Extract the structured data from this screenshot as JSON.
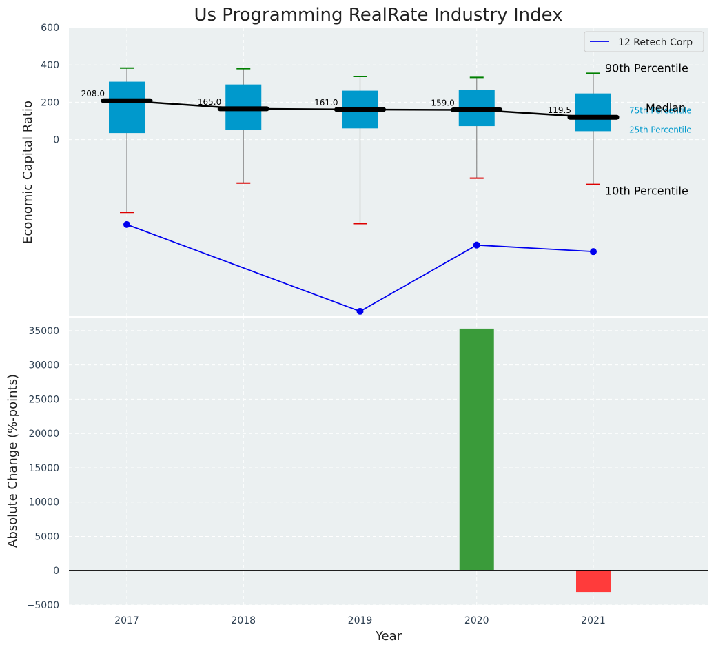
{
  "chart_data": [
    {
      "type": "box",
      "title": "Us Programming RealRate Industry Index",
      "ylabel": "Economic Capital Ratio",
      "xlabel": "",
      "ylim": [
        -950,
        600
      ],
      "yticks": [
        0,
        200,
        400,
        600
      ],
      "grid": true,
      "categories": [
        "2017",
        "2018",
        "2019",
        "2020",
        "2021"
      ],
      "boxes": [
        {
          "year": "2017",
          "p10": -390,
          "p25": 35,
          "median": 208.0,
          "median_label": "208.0",
          "p75": 310,
          "p90": 383
        },
        {
          "year": "2018",
          "p10": -233,
          "p25": 53,
          "median": 165.0,
          "median_label": "165.0",
          "p75": 295,
          "p90": 380
        },
        {
          "year": "2019",
          "p10": -450,
          "p25": 60,
          "median": 161.0,
          "median_label": "161.0",
          "p75": 262,
          "p90": 338
        },
        {
          "year": "2020",
          "p10": -207,
          "p25": 72,
          "median": 159.0,
          "median_label": "159.0",
          "p75": 265,
          "p90": 333
        },
        {
          "year": "2021",
          "p10": -240,
          "p25": 45,
          "median": 119.5,
          "median_label": "119.5",
          "p75": 247,
          "p90": 355
        }
      ],
      "company_series": {
        "name": "12 Retech Corp",
        "color": "#0000ee",
        "points": [
          {
            "year": "2017",
            "value": -455
          },
          {
            "year": "2019",
            "value": -920
          },
          {
            "year": "2020",
            "value": -565
          },
          {
            "year": "2021",
            "value": -600
          }
        ]
      },
      "legend": {
        "position": "top-right",
        "entries": [
          "12 Retech Corp"
        ]
      },
      "annotations": {
        "p90": "90th Percentile",
        "p75": "75th Percentile",
        "median": "Median",
        "p25": "25th Percentile",
        "p10": "10th Percentile"
      },
      "colors": {
        "box": "#0099cc",
        "median": "#000000",
        "whisker_top": "#008000",
        "whisker_bottom": "#dd0000",
        "quartile_text": "#0099cc",
        "background": "#ebf0f1"
      }
    },
    {
      "type": "bar",
      "title": "",
      "xlabel": "Year",
      "ylabel": "Absolute Change (%-points)",
      "ylim": [
        -5000,
        37000
      ],
      "yticks": [
        -5000,
        0,
        5000,
        10000,
        15000,
        20000,
        25000,
        30000,
        35000
      ],
      "ytick_labels": [
        "−5000",
        "0",
        "5000",
        "10000",
        "15000",
        "20000",
        "25000",
        "30000",
        "35000"
      ],
      "grid": true,
      "categories": [
        "2017",
        "2018",
        "2019",
        "2020",
        "2021"
      ],
      "values": [
        0,
        0,
        0,
        35300,
        -3100
      ],
      "colors": {
        "positive": "#3a9b3a",
        "negative": "#ff3b3b",
        "zero_line": "#000000",
        "background": "#ebf0f1"
      }
    }
  ]
}
